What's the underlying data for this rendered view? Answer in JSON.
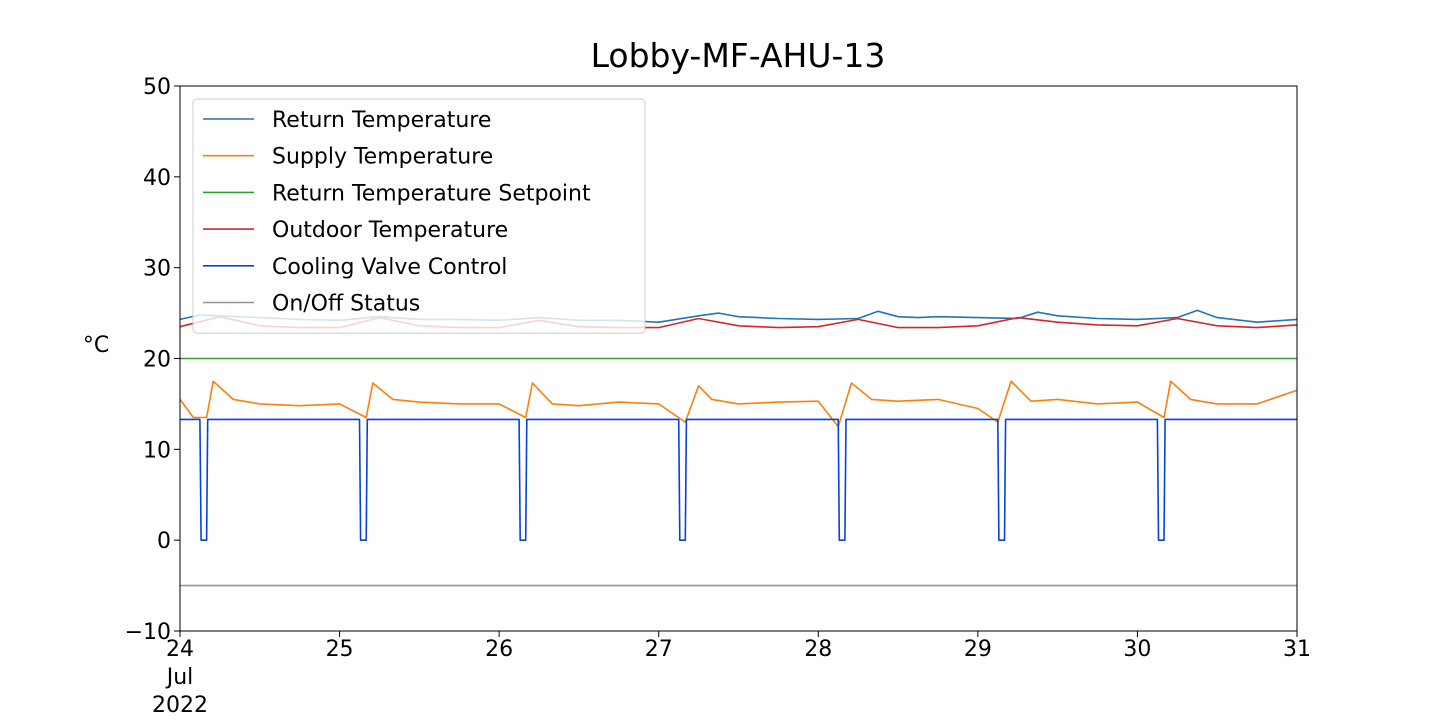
{
  "chart_data": {
    "type": "line",
    "title": "Lobby-MF-AHU-13",
    "ylabel": "°C",
    "xlabel": "",
    "ylim": [
      -10,
      50
    ],
    "yticks": [
      -10,
      0,
      10,
      20,
      30,
      40,
      50
    ],
    "ytick_labels": [
      "−10",
      "0",
      "10",
      "20",
      "30",
      "40",
      "50"
    ],
    "xlim": [
      "2022-07-24",
      "2022-07-31"
    ],
    "xticks": [
      {
        "x": "2022-07-24",
        "label": "24"
      },
      {
        "x": "2022-07-25",
        "label": "25"
      },
      {
        "x": "2022-07-26",
        "label": "26"
      },
      {
        "x": "2022-07-27",
        "label": "27"
      },
      {
        "x": "2022-07-28",
        "label": "28"
      },
      {
        "x": "2022-07-29",
        "label": "29"
      },
      {
        "x": "2022-07-30",
        "label": "30"
      },
      {
        "x": "2022-07-31",
        "label": "31"
      }
    ],
    "xtick_sublabels": [
      "Jul",
      "2022"
    ],
    "grid": false,
    "legend_position": "top-left",
    "series": [
      {
        "name": "Return Temperature",
        "color": "#1f77b4",
        "x": [
          "2022-07-24 00:00",
          "2022-07-24 03:00",
          "2022-07-24 06:00",
          "2022-07-24 12:00",
          "2022-07-24 18:00",
          "2022-07-25 00:00",
          "2022-07-25 06:00",
          "2022-07-25 12:00",
          "2022-07-25 18:00",
          "2022-07-26 00:00",
          "2022-07-26 06:00",
          "2022-07-26 12:00",
          "2022-07-26 18:00",
          "2022-07-27 00:00",
          "2022-07-27 06:00",
          "2022-07-27 09:00",
          "2022-07-27 12:00",
          "2022-07-27 15:00",
          "2022-07-27 18:00",
          "2022-07-28 00:00",
          "2022-07-28 06:00",
          "2022-07-28 09:00",
          "2022-07-28 12:00",
          "2022-07-28 15:00",
          "2022-07-28 18:00",
          "2022-07-29 00:00",
          "2022-07-29 06:00",
          "2022-07-29 09:00",
          "2022-07-29 12:00",
          "2022-07-29 18:00",
          "2022-07-30 00:00",
          "2022-07-30 06:00",
          "2022-07-30 09:00",
          "2022-07-30 12:00",
          "2022-07-30 18:00",
          "2022-07-31 00:00"
        ],
        "y": [
          24.3,
          24.8,
          24.7,
          24.5,
          24.3,
          24.2,
          24.6,
          24.3,
          24.3,
          24.2,
          24.5,
          24.2,
          24.2,
          24.0,
          24.7,
          25.0,
          24.6,
          24.5,
          24.4,
          24.3,
          24.4,
          25.2,
          24.6,
          24.5,
          24.6,
          24.5,
          24.4,
          25.1,
          24.7,
          24.4,
          24.3,
          24.5,
          25.3,
          24.5,
          24.0,
          24.3
        ]
      },
      {
        "name": "Supply Temperature",
        "color": "#ff7f0e",
        "x": [
          "2022-07-24 00:00",
          "2022-07-24 02:00",
          "2022-07-24 04:00",
          "2022-07-24 05:00",
          "2022-07-24 08:00",
          "2022-07-24 12:00",
          "2022-07-24 18:00",
          "2022-07-25 00:00",
          "2022-07-25 04:00",
          "2022-07-25 05:00",
          "2022-07-25 08:00",
          "2022-07-25 12:00",
          "2022-07-25 18:00",
          "2022-07-26 00:00",
          "2022-07-26 04:00",
          "2022-07-26 05:00",
          "2022-07-26 08:00",
          "2022-07-26 12:00",
          "2022-07-26 18:00",
          "2022-07-27 00:00",
          "2022-07-27 04:00",
          "2022-07-27 06:00",
          "2022-07-27 08:00",
          "2022-07-27 12:00",
          "2022-07-27 18:00",
          "2022-07-28 00:00",
          "2022-07-28 03:00",
          "2022-07-28 05:00",
          "2022-07-28 08:00",
          "2022-07-28 12:00",
          "2022-07-28 18:00",
          "2022-07-29 00:00",
          "2022-07-29 03:00",
          "2022-07-29 05:00",
          "2022-07-29 08:00",
          "2022-07-29 12:00",
          "2022-07-29 18:00",
          "2022-07-30 00:00",
          "2022-07-30 04:00",
          "2022-07-30 05:00",
          "2022-07-30 08:00",
          "2022-07-30 12:00",
          "2022-07-30 18:00",
          "2022-07-31 00:00"
        ],
        "y": [
          15.5,
          13.5,
          13.5,
          17.5,
          15.5,
          15.0,
          14.8,
          15.0,
          13.5,
          17.3,
          15.5,
          15.2,
          15.0,
          15.0,
          13.5,
          17.3,
          15.0,
          14.8,
          15.2,
          15.0,
          13.0,
          17.0,
          15.5,
          15.0,
          15.2,
          15.3,
          12.5,
          17.3,
          15.5,
          15.3,
          15.5,
          14.5,
          13.0,
          17.5,
          15.3,
          15.5,
          15.0,
          15.2,
          13.5,
          17.5,
          15.5,
          15.0,
          15.0,
          16.5
        ]
      },
      {
        "name": "Return Temperature Setpoint",
        "color": "#2ca02c",
        "x": [
          "2022-07-24 00:00",
          "2022-07-31 00:00"
        ],
        "y": [
          20,
          20
        ]
      },
      {
        "name": "Outdoor Temperature",
        "color": "#d62728",
        "x": [
          "2022-07-24 00:00",
          "2022-07-24 06:00",
          "2022-07-24 12:00",
          "2022-07-24 18:00",
          "2022-07-25 00:00",
          "2022-07-25 06:00",
          "2022-07-25 12:00",
          "2022-07-25 18:00",
          "2022-07-26 00:00",
          "2022-07-26 06:00",
          "2022-07-26 12:00",
          "2022-07-26 18:00",
          "2022-07-27 00:00",
          "2022-07-27 06:00",
          "2022-07-27 12:00",
          "2022-07-27 18:00",
          "2022-07-28 00:00",
          "2022-07-28 06:00",
          "2022-07-28 12:00",
          "2022-07-28 18:00",
          "2022-07-29 00:00",
          "2022-07-29 06:00",
          "2022-07-29 12:00",
          "2022-07-29 18:00",
          "2022-07-30 00:00",
          "2022-07-30 06:00",
          "2022-07-30 12:00",
          "2022-07-30 18:00",
          "2022-07-31 00:00"
        ],
        "y": [
          23.5,
          24.6,
          23.6,
          23.4,
          23.4,
          24.5,
          23.6,
          23.4,
          23.4,
          24.2,
          23.5,
          23.4,
          23.4,
          24.4,
          23.6,
          23.4,
          23.5,
          24.3,
          23.4,
          23.4,
          23.6,
          24.5,
          24.0,
          23.7,
          23.6,
          24.4,
          23.6,
          23.4,
          23.7
        ]
      },
      {
        "name": "Cooling Valve Control",
        "color": "#0343df",
        "x": [
          "2022-07-24 00:00",
          "2022-07-24 03:00",
          "2022-07-24 03:10",
          "2022-07-24 04:00",
          "2022-07-24 04:10",
          "2022-07-25 03:00",
          "2022-07-25 03:10",
          "2022-07-25 04:00",
          "2022-07-25 04:10",
          "2022-07-26 03:00",
          "2022-07-26 03:10",
          "2022-07-26 04:00",
          "2022-07-26 04:10",
          "2022-07-27 03:00",
          "2022-07-27 03:10",
          "2022-07-27 04:00",
          "2022-07-27 04:10",
          "2022-07-28 03:00",
          "2022-07-28 03:10",
          "2022-07-28 04:00",
          "2022-07-28 04:10",
          "2022-07-29 03:00",
          "2022-07-29 03:10",
          "2022-07-29 04:00",
          "2022-07-29 04:10",
          "2022-07-30 03:00",
          "2022-07-30 03:10",
          "2022-07-30 04:00",
          "2022-07-30 04:10",
          "2022-07-31 00:00"
        ],
        "y": [
          13.3,
          13.3,
          0,
          0,
          13.3,
          13.3,
          0,
          0,
          13.3,
          13.3,
          0,
          0,
          13.3,
          13.3,
          0,
          0,
          13.3,
          13.3,
          0,
          0,
          13.3,
          13.3,
          0,
          0,
          13.3,
          13.3,
          0,
          0,
          13.3,
          13.3
        ]
      },
      {
        "name": "On/Off Status",
        "color": "#929591",
        "x": [
          "2022-07-24 00:00",
          "2022-07-31 00:00"
        ],
        "y": [
          -5,
          -5
        ]
      }
    ]
  }
}
